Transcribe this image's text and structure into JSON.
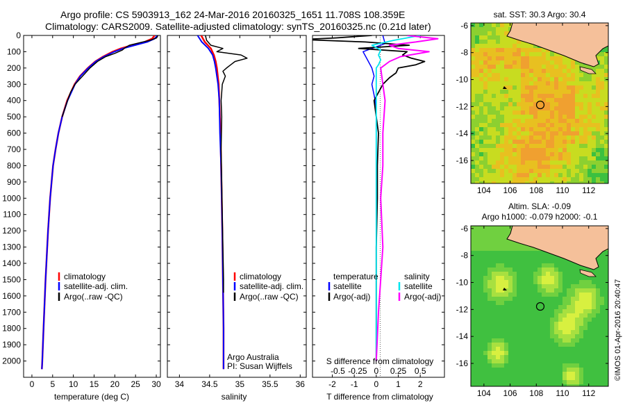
{
  "header": {
    "line1": "Argo profile: CS 5903913_162 24-Mar-2016 20160325_1651 11.708S 108.359E",
    "line2": "Climatology: CARS2009. Satellite-adjusted climatology: synTS_20160325.nc (0.21d later)"
  },
  "colors": {
    "climatology": "#ff0000",
    "satellite": "#0000ff",
    "argo": "#000000",
    "salinity_satellite": "#00e5ee",
    "salinity_argo": "#ff00ff",
    "land": "#f5c09a"
  },
  "chart_data": [
    {
      "type": "line",
      "id": "temperature",
      "xlabel": "temperature (deg C)",
      "xticks": [
        "0",
        "5",
        "10",
        "15",
        "20",
        "25",
        "30"
      ],
      "xlim": [
        -2,
        31
      ],
      "ylim": [
        2100,
        0
      ],
      "yticks": [
        "0",
        "100",
        "200",
        "300",
        "400",
        "500",
        "600",
        "700",
        "800",
        "900",
        "1000",
        "1100",
        "1200",
        "1300",
        "1400",
        "1500",
        "1600",
        "1700",
        "1800",
        "1900",
        "2000"
      ],
      "legend": [
        "climatology",
        "satellite-adj. clim.",
        "Argo(..raw -QC)"
      ],
      "series": [
        {
          "name": "climatology",
          "color": "#ff0000",
          "depth": [
            0,
            20,
            40,
            60,
            80,
            100,
            130,
            160,
            200,
            250,
            300,
            400,
            500,
            600,
            700,
            800,
            1000,
            1200,
            1500,
            1800,
            2000,
            2050
          ],
          "values": [
            29.6,
            29.0,
            27.2,
            24.2,
            21.5,
            19.5,
            17.2,
            15.3,
            13.5,
            11.6,
            10.3,
            8.5,
            7.3,
            6.4,
            5.7,
            5.1,
            4.4,
            3.9,
            3.3,
            2.8,
            2.5,
            2.4
          ]
        },
        {
          "name": "satellite-adj. clim.",
          "color": "#0000ff",
          "depth": [
            0,
            20,
            40,
            60,
            80,
            100,
            130,
            160,
            200,
            250,
            300,
            400,
            500,
            600,
            700,
            800,
            1000,
            1200,
            1500,
            1800,
            2000,
            2050
          ],
          "values": [
            30.3,
            29.6,
            27.8,
            24.8,
            22.0,
            19.9,
            17.4,
            15.4,
            13.6,
            11.7,
            10.4,
            8.6,
            7.3,
            6.4,
            5.7,
            5.1,
            4.4,
            3.9,
            3.3,
            2.8,
            2.5,
            2.4
          ]
        },
        {
          "name": "Argo(..raw -QC)",
          "color": "#000000",
          "depth": [
            0,
            15,
            30,
            45,
            60,
            75,
            90,
            110,
            130,
            160,
            200,
            250,
            300,
            350,
            400,
            500
          ],
          "values": [
            30.4,
            30.1,
            28.5,
            26.0,
            23.5,
            22.5,
            21.8,
            20.0,
            17.8,
            15.8,
            14.0,
            12.2,
            10.4,
            9.3,
            8.6,
            7.3
          ]
        }
      ]
    },
    {
      "type": "line",
      "id": "salinity",
      "xlabel": "salinity",
      "xticks": [
        "34",
        "34.5",
        "35",
        "35.5",
        "36"
      ],
      "xlim": [
        33.8,
        36.1
      ],
      "ylim": [
        2100,
        0
      ],
      "legend": [
        "climatology",
        "satellite-adj. clim.",
        "Argo(..raw -QC)"
      ],
      "annotation": [
        "Argo Australia",
        "PI: Susan Wijffels"
      ],
      "series": [
        {
          "name": "climatology",
          "color": "#ff0000",
          "depth": [
            0,
            40,
            80,
            120,
            160,
            200,
            300,
            400,
            600,
            800,
            1000,
            1200,
            1500,
            1800,
            2050
          ],
          "values": [
            34.36,
            34.42,
            34.52,
            34.57,
            34.6,
            34.62,
            34.65,
            34.66,
            34.68,
            34.69,
            34.7,
            34.71,
            34.72,
            34.73,
            34.73
          ]
        },
        {
          "name": "satellite-adj. clim.",
          "color": "#0000ff",
          "depth": [
            0,
            40,
            80,
            120,
            160,
            200,
            300,
            400,
            600,
            800,
            1000,
            1200,
            1500,
            1800,
            2050
          ],
          "values": [
            34.3,
            34.37,
            34.48,
            34.55,
            34.58,
            34.6,
            34.64,
            34.66,
            34.67,
            34.69,
            34.7,
            34.71,
            34.72,
            34.73,
            34.73
          ]
        },
        {
          "name": "Argo(..raw -QC)",
          "color": "#000000",
          "depth": [
            0,
            30,
            60,
            80,
            100,
            120,
            140,
            160,
            180,
            200,
            220,
            250,
            300,
            350,
            400,
            500,
            700,
            900,
            1100,
            1300,
            1500,
            1580
          ],
          "values": [
            34.43,
            34.45,
            34.52,
            34.72,
            34.62,
            35.02,
            35.12,
            34.92,
            34.85,
            34.78,
            34.72,
            34.76,
            34.71,
            34.7,
            34.69,
            34.7,
            34.69,
            34.7,
            34.71,
            34.72,
            34.73,
            34.73
          ]
        }
      ]
    },
    {
      "type": "line",
      "id": "difference",
      "xlabel": "T difference from climatology",
      "toplabel": "S difference from climatology",
      "xticks": [
        "-2",
        "-1",
        "0",
        "1",
        "2"
      ],
      "sticks": [
        "-0.5",
        "-0.25",
        "0",
        "0.25",
        "0.5"
      ],
      "xlim": [
        -2.9,
        3.1
      ],
      "ylim": [
        2100,
        0
      ],
      "legend_temperature": [
        "temperature",
        "satellite",
        "Argo(-adj)"
      ],
      "legend_salinity": [
        "salinity",
        "satellite",
        "Argo(-adj)"
      ],
      "series": [
        {
          "name": "satellite",
          "color": "#0000ff",
          "depth": [
            0,
            50,
            100,
            150,
            200,
            250,
            300,
            400,
            500,
            700,
            1000,
            1500,
            2000
          ],
          "values": [
            0.3,
            0.4,
            -0.6,
            -0.4,
            -0.2,
            -0.1,
            -0.2,
            -0.05,
            0,
            0,
            0,
            0,
            0
          ]
        },
        {
          "name": "Argo(-adj)",
          "color": "#000000",
          "depth": [
            0,
            15,
            25,
            40,
            60,
            80,
            100,
            120,
            140,
            160,
            180,
            200,
            230,
            260,
            300,
            400,
            600,
            800,
            1000,
            1300,
            1500,
            1800,
            2000
          ],
          "values": [
            -0.2,
            -1.8,
            -3.4,
            -0.5,
            1.5,
            -0.8,
            1.4,
            1.2,
            1.6,
            2.2,
            1.8,
            1.0,
            0.9,
            0.6,
            0.3,
            -0.1,
            0.1,
            0.05,
            0.05,
            0,
            0,
            0,
            0
          ]
        },
        {
          "name": "salinity satellite",
          "color": "#00e5ee",
          "depth": [
            0,
            30,
            60,
            90,
            120,
            150,
            180,
            200,
            300,
            500,
            1000,
            2000
          ],
          "values": [
            2.0,
            0.8,
            -0.2,
            0.2,
            0.1,
            0.2,
            0.1,
            0,
            0,
            0,
            0,
            0
          ]
        },
        {
          "name": "salinity Argo(-adj)",
          "color": "#ff00ff",
          "depth": [
            0,
            20,
            40,
            60,
            80,
            100,
            130,
            160,
            200,
            300,
            400,
            600,
            800,
            1000,
            1300,
            1500,
            1700,
            2000
          ],
          "values": [
            1.4,
            2.8,
            1.8,
            0.6,
            1.0,
            2.4,
            1.1,
            0.6,
            0.2,
            0.3,
            0.4,
            0.3,
            0.3,
            0.2,
            0.3,
            0.2,
            0.1,
            0
          ]
        }
      ]
    }
  ],
  "maps": [
    {
      "id": "sst-map",
      "title": "sat. SST: 30.3 Argo: 30.4",
      "lon_ticks": [
        "104",
        "106",
        "108",
        "110",
        "112"
      ],
      "lat_ticks": [
        "-6",
        "-8",
        "-10",
        "-12",
        "-14",
        "-16"
      ],
      "lon_range": [
        103.0,
        113.5
      ],
      "lat_range": [
        -17.7,
        -5.8
      ],
      "argo_position": {
        "lon": 108.359,
        "lat": -11.708
      },
      "colormap": "sst"
    },
    {
      "id": "sla-map",
      "title_line1": "Altim. SLA: -0.09",
      "title_line2": "Argo h1000: -0.079 h2000: -0.1",
      "lon_ticks": [
        "104",
        "106",
        "108",
        "110",
        "112"
      ],
      "lat_ticks": [
        "-6",
        "-8",
        "-10",
        "-12",
        "-14",
        "-16"
      ],
      "lon_range": [
        103.0,
        113.5
      ],
      "lat_range": [
        -17.7,
        -5.8
      ],
      "argo_position": {
        "lon": 108.359,
        "lat": -11.708
      },
      "colormap": "sla"
    }
  ],
  "credit": "©IMOS 01-Apr-2016 20:40:47"
}
